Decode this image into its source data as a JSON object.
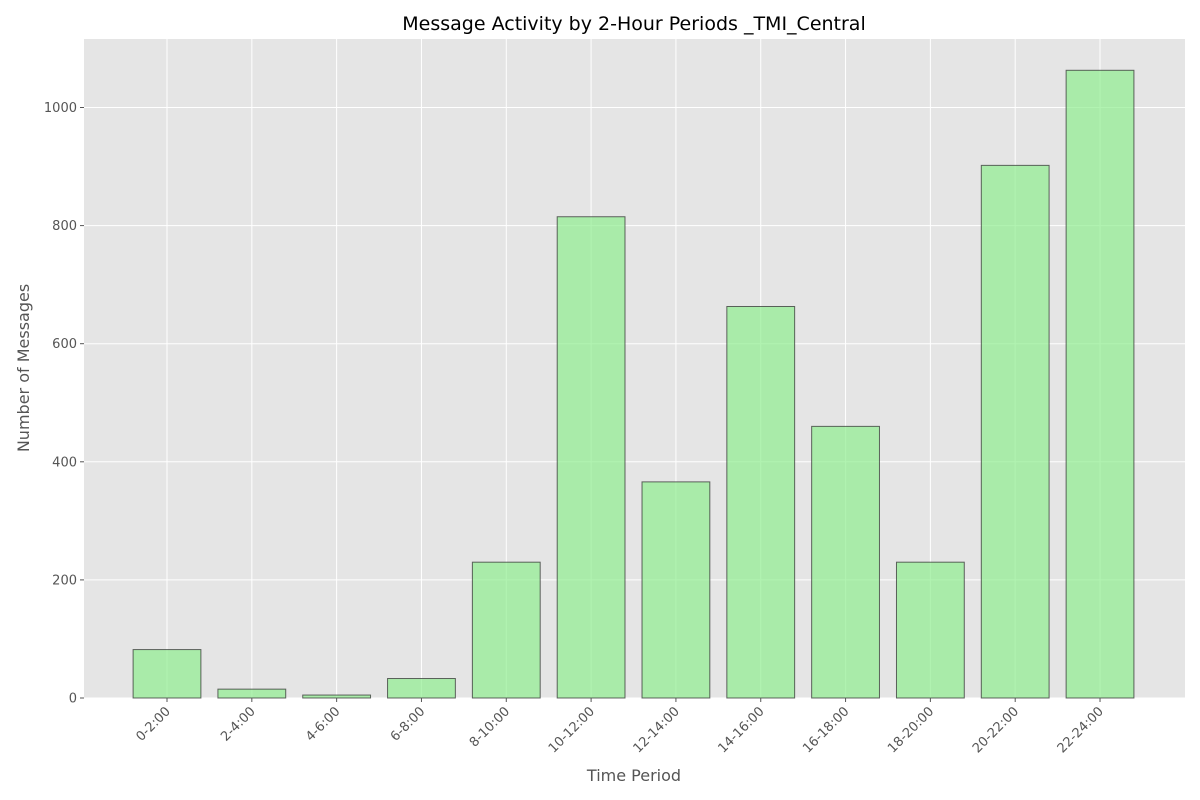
{
  "chart_data": {
    "type": "bar",
    "title": "Message Activity by 2-Hour Periods _TMI_Central",
    "xlabel": "Time Period",
    "ylabel": "Number of Messages",
    "categories": [
      "0-2:00",
      "2-4:00",
      "4-6:00",
      "6-8:00",
      "8-10:00",
      "10-12:00",
      "12-14:00",
      "14-16:00",
      "16-18:00",
      "18-20:00",
      "20-22:00",
      "22-24:00"
    ],
    "values": [
      82,
      15,
      5,
      33,
      230,
      815,
      366,
      663,
      460,
      230,
      902,
      1063
    ],
    "ylim": [
      0,
      1116
    ],
    "yticks": [
      0,
      200,
      400,
      600,
      800,
      1000
    ],
    "grid": true,
    "bar_color": "#90ee90",
    "background_color": "#e5e5e5"
  }
}
